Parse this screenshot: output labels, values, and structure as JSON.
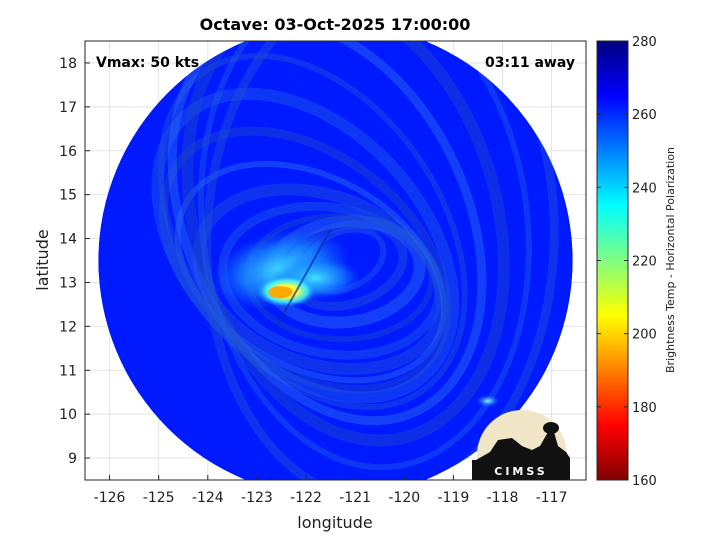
{
  "chart_data": {
    "type": "heatmap",
    "title": "Octave: 03-Oct-2025 17:00:00",
    "xlabel": "longitude",
    "ylabel": "latitude",
    "xlim": [
      -126.5,
      -116.3
    ],
    "ylim": [
      8.5,
      18.5
    ],
    "x_ticks": [
      -126,
      -125,
      -124,
      -123,
      -122,
      -121,
      -120,
      -119,
      -118,
      -117
    ],
    "y_ticks": [
      9,
      10,
      11,
      12,
      13,
      14,
      15,
      16,
      17,
      18
    ],
    "grid": true,
    "annotations": {
      "vmax": "Vmax: 50 kts",
      "time_away": "03:11 away"
    },
    "colorbar": {
      "label": "Brightness Temp - Horizontal Polarization",
      "min": 160,
      "max": 280,
      "ticks": [
        160,
        180,
        200,
        220,
        240,
        260,
        280
      ],
      "colormap": [
        "#7f0000",
        "#ff0000",
        "#ff8000",
        "#ffff00",
        "#80ff80",
        "#00ffff",
        "#0080ff",
        "#0000ff",
        "#00007f"
      ]
    },
    "swath": {
      "center": [
        -121.4,
        13.5
      ],
      "radius_deg": 5.1,
      "background_temp": 262,
      "features": [
        {
          "name": "warm-core",
          "lon": -122.4,
          "lat": 12.8,
          "temp": 195
        },
        {
          "name": "inner-band",
          "lon": -122.5,
          "lat": 13.3,
          "temp": 232
        },
        {
          "name": "eye-edge",
          "lon": -121.8,
          "lat": 13.1,
          "temp": 240
        },
        {
          "name": "outer-spot",
          "lon": -118.3,
          "lat": 10.3,
          "temp": 240
        }
      ]
    }
  },
  "logo": {
    "text": "CIMSS"
  }
}
